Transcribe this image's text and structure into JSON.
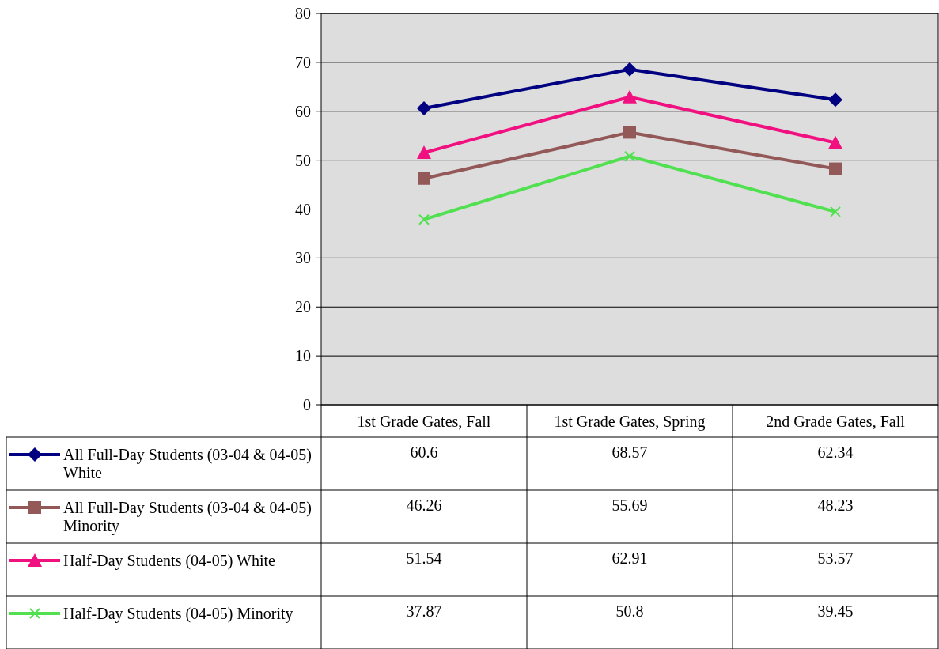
{
  "chart_data": {
    "type": "line",
    "categories": [
      "1st Grade Gates, Fall",
      "1st Grade Gates, Spring",
      "2nd Grade Gates, Fall"
    ],
    "series": [
      {
        "name": "All Full-Day Students (03-04 & 04-05) White",
        "color": "#000080",
        "marker": "diamond",
        "values": [
          60.6,
          68.57,
          62.34
        ]
      },
      {
        "name": "All Full-Day Students (03-04 & 04-05) Minority",
        "color": "#935858",
        "marker": "square",
        "values": [
          46.26,
          55.69,
          48.23
        ]
      },
      {
        "name": "Half-Day Students (04-05) White",
        "color": "#f0107f",
        "marker": "triangle",
        "values": [
          51.54,
          62.91,
          53.57
        ]
      },
      {
        "name": "Half-Day Students (04-05) Minority",
        "color": "#50e050",
        "marker": "cross",
        "values": [
          37.87,
          50.8,
          39.45
        ]
      }
    ],
    "ylim": [
      0,
      80
    ],
    "yticks": [
      0,
      10,
      20,
      30,
      40,
      50,
      60,
      70,
      80
    ],
    "grid": "y",
    "legend": "bottom",
    "data_labels": true
  }
}
